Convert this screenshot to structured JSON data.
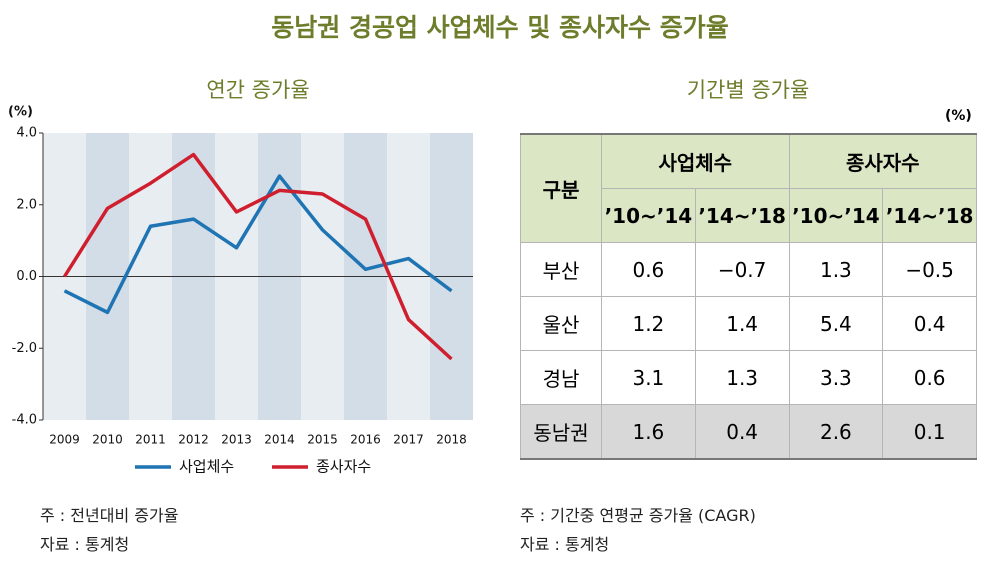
{
  "title": "동남권 경공업 사업체수 및 종사자수 증가율",
  "chart_data": {
    "type": "line",
    "title": "연간 증가율",
    "y_label": "(%)",
    "categories": [
      "2009",
      "2010",
      "2011",
      "2012",
      "2013",
      "2014",
      "2015",
      "2016",
      "2017",
      "2018"
    ],
    "series": [
      {
        "name": "사업체수",
        "color": "#1f74b3",
        "values": [
          -0.4,
          -1.0,
          1.4,
          1.6,
          0.8,
          2.8,
          1.3,
          0.2,
          0.5,
          -0.4
        ]
      },
      {
        "name": "종사자수",
        "color": "#cf1f2e",
        "values": [
          0.0,
          1.9,
          2.6,
          3.4,
          1.8,
          2.4,
          2.3,
          1.6,
          -1.2,
          -2.3
        ]
      }
    ],
    "ylim": [
      -4,
      4
    ],
    "yticks": [
      {
        "value": -4,
        "label": "-4.0"
      },
      {
        "value": -2,
        "label": "-2.0"
      },
      {
        "value": 0,
        "label": "0.0"
      },
      {
        "value": 2,
        "label": "2.0"
      },
      {
        "value": 4,
        "label": "4.0"
      }
    ],
    "notes": [
      "주 : 전년대비 증가율",
      "자료 : 통계청"
    ]
  },
  "table": {
    "title": "기간별 증가율",
    "unit": "(%)",
    "corner": "구분",
    "groups": [
      "사업체수",
      "종사자수"
    ],
    "periods": [
      "’10~’14",
      "’14~’18",
      "’10~’14",
      "’14~’18"
    ],
    "rows": [
      [
        "부산",
        "0.6",
        "−0.7",
        "1.3",
        "−0.5"
      ],
      [
        "울산",
        "1.2",
        "1.4",
        "5.4",
        "0.4"
      ],
      [
        "경남",
        "3.1",
        "1.3",
        "3.3",
        "0.6"
      ],
      [
        "동남권",
        "1.6",
        "0.4",
        "2.6",
        "0.1"
      ]
    ],
    "notes": [
      "주 : 기간중 연평균 증가율 (CAGR)",
      "자료 : 통계청"
    ]
  }
}
